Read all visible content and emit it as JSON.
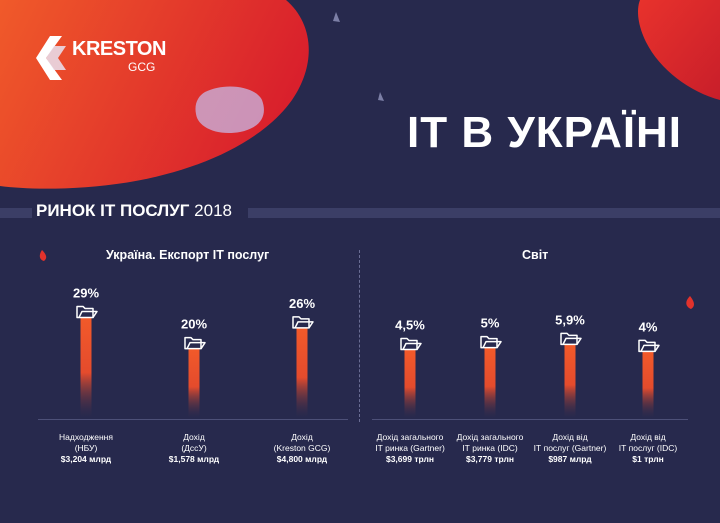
{
  "brand": {
    "name": "KRESTON",
    "sub": "GCG",
    "colors": {
      "orange": "#f0532b",
      "red": "#e12a2a",
      "navy": "#27294d"
    }
  },
  "title": "ІТ В УКРАЇНІ",
  "section": {
    "title": "РИНОК ІТ ПОСЛУГ",
    "year": "2018"
  },
  "chart_data": [
    {
      "type": "bar",
      "title": "Україна. Експорт ІТ послуг",
      "icon": "folder-icon",
      "ylim": [
        0,
        30
      ],
      "grid": false,
      "categories": [
        {
          "lines": [
            "Надходження",
            "(НБУ)"
          ],
          "value_text": "$3,204 млрд"
        },
        {
          "lines": [
            "Дохід",
            "(ДссУ)"
          ],
          "value_text": "$1,578 млрд"
        },
        {
          "lines": [
            "Дохід",
            "(Kreston GCG)"
          ],
          "value_text": "$4,800 млрд"
        }
      ],
      "values": [
        29,
        20,
        26
      ],
      "labels": [
        "29%",
        "20%",
        "26%"
      ]
    },
    {
      "type": "bar",
      "title": "Світ",
      "icon": "folder-icon",
      "ylim": [
        0,
        30
      ],
      "grid": false,
      "categories": [
        {
          "lines": [
            "Дохід загального",
            "ІТ ринка (Gartner)"
          ],
          "value_text": "$3,699 трлн"
        },
        {
          "lines": [
            "Дохід загального",
            "ІТ ринка (IDC)"
          ],
          "value_text": "$3,779 трлн"
        },
        {
          "lines": [
            "Дохід від",
            "ІТ послуг (Gartner)"
          ],
          "value_text": "$987 млрд"
        },
        {
          "lines": [
            "Дохід від",
            "ІТ послуг (IDC)"
          ],
          "value_text": "$1 трлн"
        }
      ],
      "values": [
        4.5,
        5,
        5.9,
        4
      ],
      "labels": [
        "4,5%",
        "5%",
        "5,9%",
        "4%"
      ]
    }
  ]
}
